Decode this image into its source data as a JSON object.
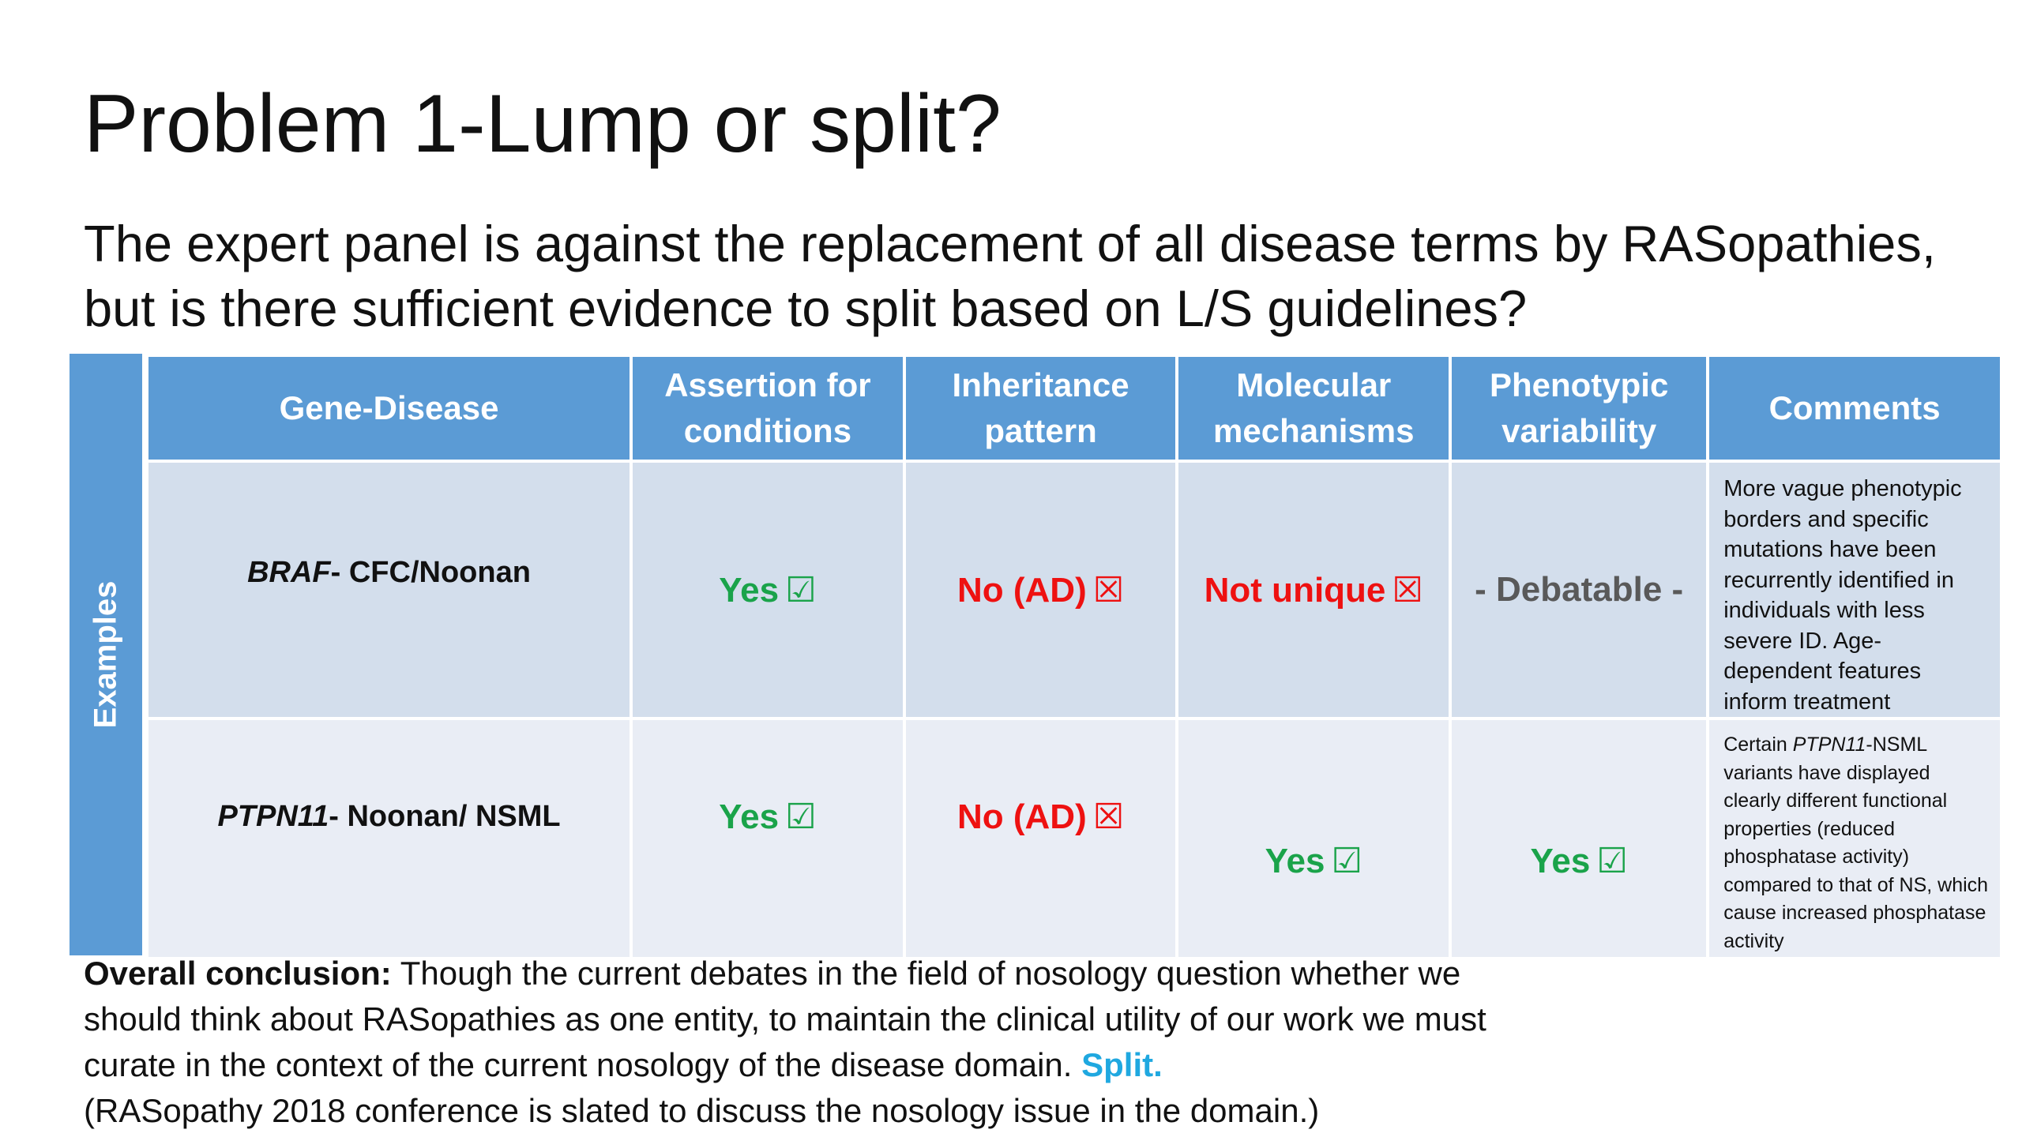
{
  "title": "Problem 1-Lump or split?",
  "subtitle": "The expert panel is against the replacement of all disease terms by RASopathies, but is there sufficient evidence to split based on L/S guidelines?",
  "table": {
    "side_label": "Examples",
    "headers": [
      "Gene-Disease",
      "Assertion for conditions",
      "Inheritance pattern",
      "Molecular mechanisms",
      "Phenotypic variability",
      "Comments"
    ],
    "rows": [
      {
        "gene": "BRAF",
        "disease": "- CFC/Noonan",
        "assertion": "Yes",
        "inheritance": "No (AD)",
        "mechanisms": "Not unique",
        "variability": "- Debatable -",
        "comment": "More vague phenotypic borders and specific mutations have been recurrently identified in individuals with less severe ID. Age-dependent features inform treatment"
      },
      {
        "gene": "PTPN11",
        "disease": "- Noonan/ NSML",
        "assertion": "Yes",
        "inheritance": "No (AD)",
        "mechanisms": "Yes",
        "variability": "Yes",
        "comment_prefix": "Certain ",
        "comment_gene": "PTPN11",
        "comment_rest": "-NSML variants have displayed clearly different functional properties (reduced phosphatase activity) compared to that of NS, which cause increased phosphatase activity"
      }
    ],
    "icons": {
      "check": "☑",
      "cross": "☒"
    },
    "colors": {
      "header_bg": "#5b9bd5",
      "row_a_bg": "#d3deec",
      "row_b_bg": "#e9edf5",
      "yes": "#1aa34a",
      "no": "#ee1111",
      "debatable": "#595959",
      "split": "#1fa8e0"
    }
  },
  "conclusion": {
    "lead": "Overall conclusion:",
    "text": " Though the current debates in the field of nosology question whether we should think about RASopathies as one entity, to maintain the clinical utility of our work we must curate in the context of the current nosology of the disease domain. ",
    "split": "Split.",
    "note": "(RASopathy 2018 conference is slated to discuss the nosology issue in the domain.)"
  }
}
